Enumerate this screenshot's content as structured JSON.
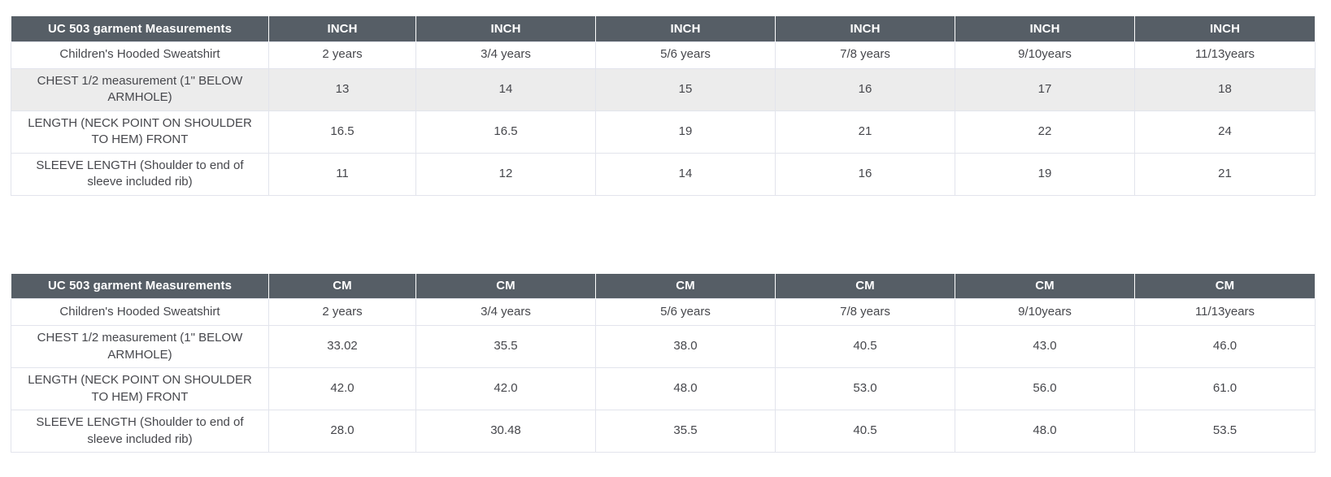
{
  "colors": {
    "header-bg": "#565e66",
    "header-text": "#ffffff",
    "stripe-bg": "#ececec",
    "grid-border": "#e2e4ec",
    "body-text": "#46474c"
  },
  "tables": [
    {
      "name": "inch",
      "title": "UC 503 garment Measurements",
      "unit_cells": [
        "INCH",
        "INCH",
        "INCH",
        "INCH",
        "INCH",
        "INCH"
      ],
      "rows": [
        {
          "label": "Children's Hooded Sweatshirt",
          "striped": false,
          "values": [
            "2 years",
            "3/4 years",
            "5/6 years",
            "7/8 years",
            "9/10years",
            "11/13years"
          ]
        },
        {
          "label": "CHEST 1/2 measurement (1\" BELOW ARMHOLE)",
          "striped": true,
          "values": [
            "13",
            "14",
            "15",
            "16",
            "17",
            "18"
          ]
        },
        {
          "label": "LENGTH (NECK POINT ON SHOULDER TO HEM) FRONT",
          "striped": false,
          "values": [
            "16.5",
            "16.5",
            "19",
            "21",
            "22",
            "24"
          ]
        },
        {
          "label": "SLEEVE LENGTH (Shoulder to end of sleeve included rib)",
          "striped": false,
          "values": [
            "11",
            "12",
            "14",
            "16",
            "19",
            "21"
          ]
        }
      ]
    },
    {
      "name": "cm",
      "title": "UC 503 garment Measurements",
      "unit_cells": [
        "CM",
        "CM",
        "CM",
        "CM",
        "CM",
        "CM"
      ],
      "rows": [
        {
          "label": "Children's Hooded Sweatshirt",
          "striped": false,
          "values": [
            "2 years",
            "3/4 years",
            "5/6 years",
            "7/8 years",
            "9/10years",
            "11/13years"
          ]
        },
        {
          "label": "CHEST 1/2 measurement (1\" BELOW ARMHOLE)",
          "striped": false,
          "values": [
            "33.02",
            "35.5",
            "38.0",
            "40.5",
            "43.0",
            "46.0"
          ]
        },
        {
          "label": "LENGTH (NECK POINT ON SHOULDER TO HEM) FRONT",
          "striped": false,
          "values": [
            "42.0",
            "42.0",
            "48.0",
            "53.0",
            "56.0",
            "61.0"
          ]
        },
        {
          "label": "SLEEVE LENGTH (Shoulder to end of sleeve included rib)",
          "striped": false,
          "values": [
            "28.0",
            "30.48",
            "35.5",
            "40.5",
            "48.0",
            "53.5"
          ]
        }
      ]
    }
  ]
}
